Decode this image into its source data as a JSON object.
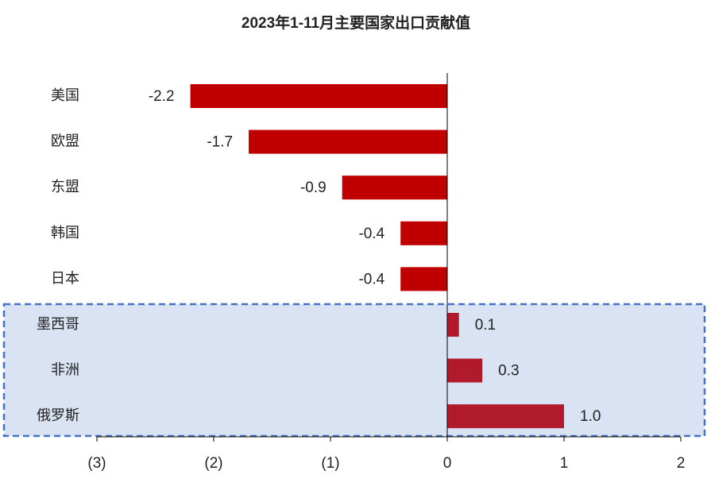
{
  "chart_data": {
    "type": "hbar",
    "title": "2023年1-11月主要国家出口贡献值",
    "categories": [
      "美国",
      "欧盟",
      "东盟",
      "韩国",
      "日本",
      "墨西哥",
      "非洲",
      "俄罗斯"
    ],
    "values": [
      -2.2,
      -1.7,
      -0.9,
      -0.4,
      -0.4,
      0.1,
      0.3,
      1.0
    ],
    "value_labels": [
      "-2.2",
      "-1.7",
      "-0.9",
      "-0.4",
      "-0.4",
      "0.1",
      "0.3",
      "1.0"
    ],
    "colors": [
      "#c00000",
      "#c00000",
      "#c00000",
      "#c00000",
      "#c00000",
      "#b01a2a",
      "#b01a2a",
      "#b01a2a"
    ],
    "xlim": [
      -3,
      2
    ],
    "xticks": [
      {
        "value": -3,
        "label": "(3)"
      },
      {
        "value": -2,
        "label": "(2)"
      },
      {
        "value": -1,
        "label": "(1)"
      },
      0,
      1,
      2
    ]
  }
}
